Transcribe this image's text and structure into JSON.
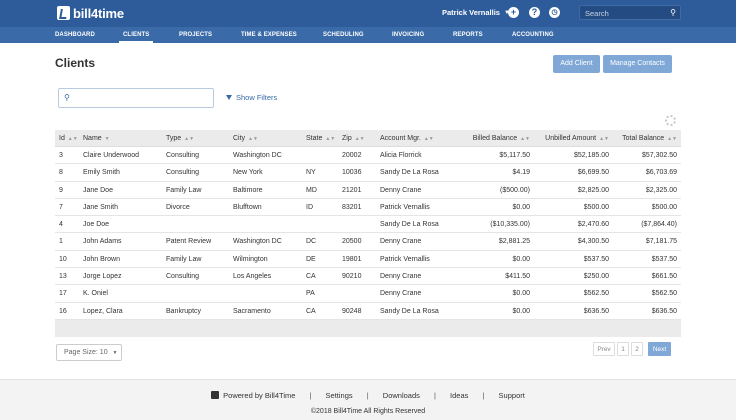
{
  "app": {
    "logo_text": "bill4time"
  },
  "header": {
    "user_name": "Patrick Vernallis",
    "search_placeholder": "Search",
    "add_icon": "plus-circle-icon",
    "help_icon": "help-circle-icon",
    "timer_icon": "clock-icon"
  },
  "nav": {
    "items": [
      {
        "label": "DASHBOARD"
      },
      {
        "label": "CLIENTS"
      },
      {
        "label": "PROJECTS"
      },
      {
        "label": "TIME & EXPENSES"
      },
      {
        "label": "SCHEDULING"
      },
      {
        "label": "INVOICING"
      },
      {
        "label": "REPORTS"
      },
      {
        "label": "ACCOUNTING"
      }
    ],
    "active": "CLIENTS"
  },
  "page": {
    "title": "Clients",
    "add_client": "Add Client",
    "manage_contacts": "Manage Contacts",
    "search_placeholder": "",
    "show_filters": "Show Filters"
  },
  "table": {
    "columns": [
      "Id",
      "Name",
      "Type",
      "City",
      "State",
      "Zip",
      "Account Mgr.",
      "Billed Balance",
      "Unbilled Amount",
      "Total Balance"
    ],
    "rows": [
      [
        "3",
        "Claire Underwood",
        "Consulting",
        "Washington DC",
        "",
        "20002",
        "Alicia Florrick",
        "$5,117.50",
        "$52,185.00",
        "$57,302.50"
      ],
      [
        "8",
        "Emily Smith",
        "Consulting",
        "New York",
        "NY",
        "10036",
        "Sandy De La Rosa",
        "$4.19",
        "$6,699.50",
        "$6,703.69"
      ],
      [
        "9",
        "Jane Doe",
        "Family Law",
        "Baltimore",
        "MD",
        "21201",
        "Denny Crane",
        "($500.00)",
        "$2,825.00",
        "$2,325.00"
      ],
      [
        "7",
        "Jane Smith",
        "Divorce",
        "Blufftown",
        "ID",
        "83201",
        "Patrick Vernallis",
        "$0.00",
        "$500.00",
        "$500.00"
      ],
      [
        "4",
        "Joe Doe",
        "",
        "",
        "",
        "",
        "Sandy De La Rosa",
        "($10,335.00)",
        "$2,470.60",
        "($7,864.40)"
      ],
      [
        "1",
        "John Adams",
        "Patent Review",
        "Washington DC",
        "DC",
        "20500",
        "Denny Crane",
        "$2,881.25",
        "$4,300.50",
        "$7,181.75"
      ],
      [
        "10",
        "John Brown",
        "Family Law",
        "Wilmington",
        "DE",
        "19801",
        "Patrick Vernallis",
        "$0.00",
        "$537.50",
        "$537.50"
      ],
      [
        "13",
        "Jorge Lopez",
        "Consulting",
        "Los Angeles",
        "CA",
        "90210",
        "Denny Crane",
        "$411.50",
        "$250.00",
        "$661.50"
      ],
      [
        "17",
        "K. Oniel",
        "",
        "",
        "PA",
        "",
        "Denny Crane",
        "$0.00",
        "$562.50",
        "$562.50"
      ],
      [
        "16",
        "Lopez, Clara",
        "Bankruptcy",
        "Sacramento",
        "CA",
        "90248",
        "Sandy De La Rosa",
        "$0.00",
        "$636.50",
        "$636.50"
      ]
    ]
  },
  "pagination": {
    "page_size": "Page Size: 10",
    "prev": "Prev",
    "pages": [
      "1",
      "2"
    ],
    "next": "Next"
  },
  "footer": {
    "powered_by": "Powered by Bill4Time",
    "links": [
      "Settings",
      "Downloads",
      "Ideas",
      "Support"
    ],
    "separator": "|",
    "copyright": "©2018 Bill4Time All Rights Reserved"
  },
  "colors": {
    "header_bg": "#2e5c9a",
    "nav_bg": "#3a6aa8",
    "button_bg": "#7fa8d6",
    "link": "#3a6aa8"
  }
}
